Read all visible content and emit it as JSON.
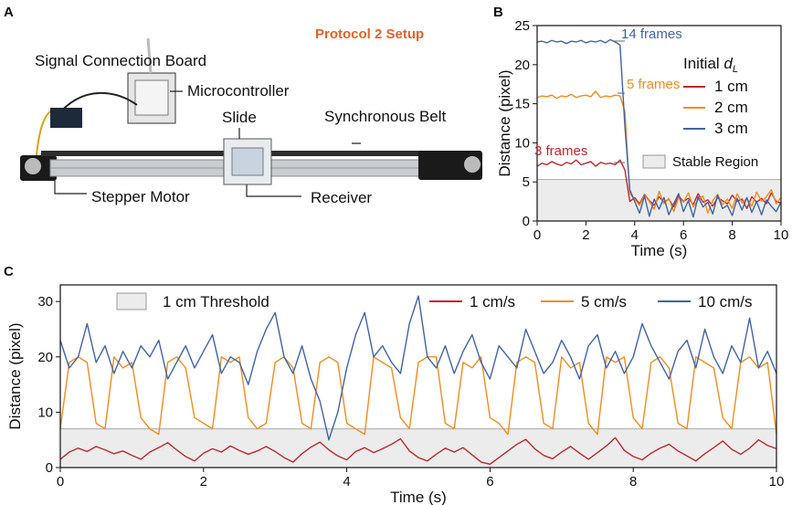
{
  "panel_labels": [
    "A",
    "B",
    "C"
  ],
  "photo": {
    "title": "Protocol 2 Setup",
    "labels": [
      "Signal Connection Board",
      "Microcontroller",
      "Slide",
      "Synchronous Belt",
      "Stepper Motor",
      "Receiver"
    ]
  },
  "chart_data": [
    {
      "type": "line",
      "xlabel": "Time (s)",
      "ylabel": "Distance (pixel)",
      "xlim": [
        0,
        10
      ],
      "ylim": [
        0,
        25
      ],
      "xticks": [
        0,
        2,
        4,
        6,
        8,
        10
      ],
      "yticks": [
        0,
        5,
        10,
        15,
        20,
        25
      ],
      "legend_title": "Initial ",
      "legend_title_var": "d",
      "legend_title_sub": "L",
      "legend": "upper right",
      "region": {
        "label": "Stable Region",
        "range": [
          0,
          5.3
        ],
        "color": "#ececec"
      },
      "annotations": [
        "14 frames",
        "5 frames",
        "3 frames"
      ],
      "x": [
        0,
        0.2,
        0.4,
        0.6,
        0.8,
        1,
        1.2,
        1.4,
        1.6,
        1.8,
        2,
        2.2,
        2.4,
        2.6,
        2.8,
        3,
        3.2,
        3.4,
        3.6,
        3.8,
        4,
        4.2,
        4.4,
        4.6,
        4.8,
        5,
        5.2,
        5.4,
        5.6,
        5.8,
        6,
        6.2,
        6.4,
        6.6,
        6.8,
        7,
        7.2,
        7.4,
        7.6,
        7.8,
        8,
        8.2,
        8.4,
        8.6,
        8.8,
        9,
        9.2,
        9.4,
        9.6,
        9.8,
        10
      ],
      "series": [
        {
          "name": "1 cm",
          "color": "#c0282d",
          "values": [
            7.0,
            7.4,
            7.2,
            7.6,
            7.3,
            7.1,
            7.5,
            7.3,
            7.8,
            7.2,
            7.4,
            7.6,
            7.0,
            7.5,
            7.3,
            7.4,
            7.2,
            7.8,
            6.5,
            2.5,
            3.0,
            2.2,
            3.4,
            2.6,
            2.0,
            3.1,
            2.4,
            2.8,
            1.8,
            3.2,
            2.5,
            2.9,
            2.1,
            3.5,
            2.4,
            2.7,
            1.9,
            3.0,
            2.6,
            2.2,
            3.3,
            2.5,
            2.8,
            1.6,
            3.1,
            2.4,
            2.9,
            2.2,
            3.6,
            2.5,
            2.3
          ]
        },
        {
          "name": "2 cm",
          "color": "#f28c1e",
          "values": [
            15.8,
            16.0,
            15.9,
            16.1,
            15.7,
            16.0,
            15.9,
            16.2,
            15.8,
            16.0,
            16.1,
            15.9,
            16.6,
            15.8,
            16.0,
            15.9,
            16.1,
            16.0,
            14.0,
            3.5,
            2.8,
            2.0,
            3.3,
            2.5,
            1.5,
            3.8,
            2.2,
            2.9,
            1.2,
            3.0,
            2.4,
            3.6,
            1.8,
            2.7,
            3.2,
            1.0,
            2.6,
            3.4,
            2.1,
            2.8,
            1.6,
            3.5,
            2.3,
            2.9,
            1.9,
            3.7,
            2.5,
            3.1,
            4.0,
            2.2,
            3.0
          ]
        },
        {
          "name": "3 cm",
          "color": "#3f63a8",
          "values": [
            22.9,
            23.0,
            22.8,
            23.1,
            22.9,
            23.0,
            22.7,
            23.0,
            22.9,
            23.1,
            22.8,
            23.0,
            22.9,
            23.1,
            22.8,
            23.2,
            22.9,
            22.5,
            12.0,
            4.0,
            2.5,
            1.0,
            3.2,
            0.6,
            2.8,
            1.5,
            3.0,
            0.8,
            2.2,
            3.5,
            1.2,
            2.6,
            0.5,
            3.1,
            1.8,
            2.4,
            0.9,
            3.3,
            1.6,
            2.0,
            0.7,
            2.9,
            1.4,
            3.0,
            1.1,
            2.5,
            0.8,
            2.7,
            1.9,
            1.2,
            2.4
          ]
        }
      ]
    },
    {
      "type": "line",
      "xlabel": "Time (s)",
      "ylabel": "Distance (pixel)",
      "xlim": [
        0,
        10
      ],
      "ylim": [
        0,
        33
      ],
      "xticks": [
        0,
        2,
        4,
        6,
        8,
        10
      ],
      "yticks": [
        0,
        10,
        20,
        30
      ],
      "legend": "top",
      "region": {
        "label": "1 cm Threshold",
        "range": [
          0,
          7
        ],
        "color": "#ececec"
      },
      "x": [
        0,
        0.125,
        0.25,
        0.375,
        0.5,
        0.625,
        0.75,
        0.875,
        1,
        1.125,
        1.25,
        1.375,
        1.5,
        1.625,
        1.75,
        1.875,
        2,
        2.125,
        2.25,
        2.375,
        2.5,
        2.625,
        2.75,
        2.875,
        3,
        3.125,
        3.25,
        3.375,
        3.5,
        3.625,
        3.75,
        3.875,
        4,
        4.125,
        4.25,
        4.375,
        4.5,
        4.625,
        4.75,
        4.875,
        5,
        5.125,
        5.25,
        5.375,
        5.5,
        5.625,
        5.75,
        5.875,
        6,
        6.125,
        6.25,
        6.375,
        6.5,
        6.625,
        6.75,
        6.875,
        7,
        7.125,
        7.25,
        7.375,
        7.5,
        7.625,
        7.75,
        7.875,
        8,
        8.125,
        8.25,
        8.375,
        8.5,
        8.625,
        8.75,
        8.875,
        9,
        9.125,
        9.25,
        9.375,
        9.5,
        9.625,
        9.75,
        9.875,
        10
      ],
      "series": [
        {
          "name": "1 cm/s",
          "color": "#c0282d",
          "values": [
            1.5,
            2.8,
            3.5,
            2.9,
            3.8,
            3.2,
            2.5,
            3.0,
            2.2,
            1.5,
            2.8,
            3.6,
            4.5,
            3.2,
            2.0,
            1.2,
            2.6,
            3.4,
            2.8,
            3.9,
            3.1,
            2.4,
            3.0,
            3.8,
            2.9,
            1.8,
            1.0,
            2.5,
            3.7,
            4.6,
            3.2,
            2.1,
            1.4,
            2.9,
            3.6,
            2.7,
            3.4,
            4.2,
            5.2,
            3.0,
            1.8,
            1.2,
            2.4,
            3.5,
            2.8,
            3.6,
            2.3,
            1.0,
            0.6,
            1.8,
            3.0,
            4.2,
            5.1,
            3.4,
            2.2,
            1.6,
            2.8,
            3.8,
            2.6,
            1.5,
            2.7,
            3.9,
            5.4,
            3.1,
            2.0,
            1.4,
            2.6,
            3.5,
            4.2,
            3.0,
            2.1,
            1.2,
            2.5,
            3.6,
            4.8,
            3.3,
            2.4,
            3.5,
            5.0,
            4.0,
            3.4
          ]
        },
        {
          "name": "5 cm/s",
          "color": "#f28c1e",
          "values": [
            7,
            19,
            20,
            19,
            8,
            7,
            20,
            18,
            19,
            9,
            7,
            6,
            19,
            20,
            18,
            9,
            8,
            7,
            20,
            19,
            20,
            9,
            7,
            8,
            19,
            20,
            18,
            8,
            7,
            19,
            20,
            19,
            8,
            7,
            6,
            20,
            19,
            18,
            9,
            7,
            19,
            20,
            20,
            8,
            7,
            19,
            18,
            20,
            9,
            8,
            6,
            19,
            20,
            19,
            8,
            7,
            20,
            18,
            19,
            8,
            6,
            20,
            19,
            20,
            9,
            7,
            19,
            20,
            18,
            8,
            7,
            20,
            19,
            18,
            9,
            7,
            19,
            20,
            18,
            19,
            6
          ]
        },
        {
          "name": "10 cm/s",
          "color": "#3f63a8",
          "values": [
            23,
            18,
            20,
            26,
            19,
            22,
            17,
            21,
            18,
            22,
            20,
            23,
            16,
            19,
            22,
            18,
            21,
            24,
            17,
            20,
            19,
            15,
            21,
            25,
            28,
            20,
            17,
            22,
            16,
            12,
            5,
            10,
            18,
            24,
            28,
            20,
            22,
            19,
            17,
            26,
            31,
            20,
            18,
            22,
            17,
            21,
            24,
            19,
            16,
            22,
            20,
            18,
            25,
            21,
            17,
            19,
            23,
            20,
            16,
            22,
            24,
            18,
            21,
            17,
            20,
            26,
            22,
            19,
            16,
            21,
            23,
            18,
            25,
            20,
            17,
            22,
            19,
            27,
            18,
            21,
            17
          ]
        }
      ]
    }
  ]
}
